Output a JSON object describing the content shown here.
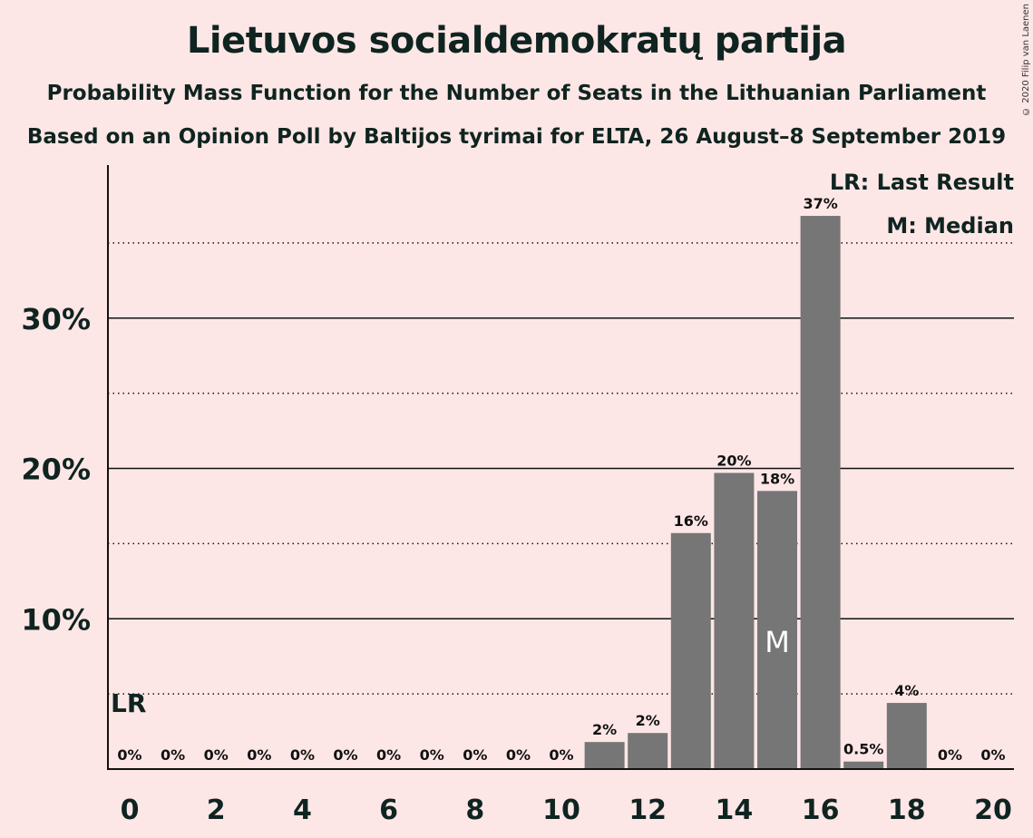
{
  "title": "Lietuvos socialdemokratų partija",
  "subtitle_1": "Probability Mass Function for the Number of Seats in the Lithuanian Parliament",
  "subtitle_2": "Based on an Opinion Poll by Baltijos tyrimai for ELTA, 26 August–8 September 2019",
  "copyright": "© 2020 Filip van Laenen",
  "legend": {
    "last_result": "LR: Last Result",
    "median": "M: Median"
  },
  "colors": {
    "background": "#fde7e6",
    "bar": "#767676",
    "text": "#0f2420"
  },
  "chart_data": {
    "type": "bar",
    "title": "Lietuvos socialdemokratų partija",
    "xlabel": "",
    "ylabel": "",
    "ylim": [
      0,
      40
    ],
    "yticks": [
      10,
      20,
      30
    ],
    "ytick_labels": [
      "10%",
      "20%",
      "30%"
    ],
    "ytick_minor": [
      5,
      15,
      25,
      35
    ],
    "xticks": [
      0,
      2,
      4,
      6,
      8,
      10,
      12,
      14,
      16,
      18,
      20
    ],
    "xtick_labels": [
      "0",
      "2",
      "4",
      "6",
      "8",
      "10",
      "12",
      "14",
      "16",
      "18",
      "20"
    ],
    "categories": [
      0,
      1,
      2,
      3,
      4,
      5,
      6,
      7,
      8,
      9,
      10,
      11,
      12,
      13,
      14,
      15,
      16,
      17,
      18,
      19,
      20
    ],
    "values": [
      0,
      0,
      0,
      0,
      0,
      0,
      0,
      0,
      0,
      0,
      0,
      1.8,
      2.4,
      15.7,
      19.7,
      18.5,
      36.8,
      0.5,
      4.4,
      0,
      0
    ],
    "labels": [
      "0%",
      "0%",
      "0%",
      "0%",
      "0%",
      "0%",
      "0%",
      "0%",
      "0%",
      "0%",
      "0%",
      "2%",
      "2%",
      "16%",
      "20%",
      "18%",
      "37%",
      "0.5%",
      "4%",
      "0%",
      "0%"
    ],
    "last_result_seat": 0,
    "last_result_marker": "LR",
    "median_seat": 15,
    "median_marker": "M",
    "grid": true,
    "legend_position": "top-right"
  }
}
